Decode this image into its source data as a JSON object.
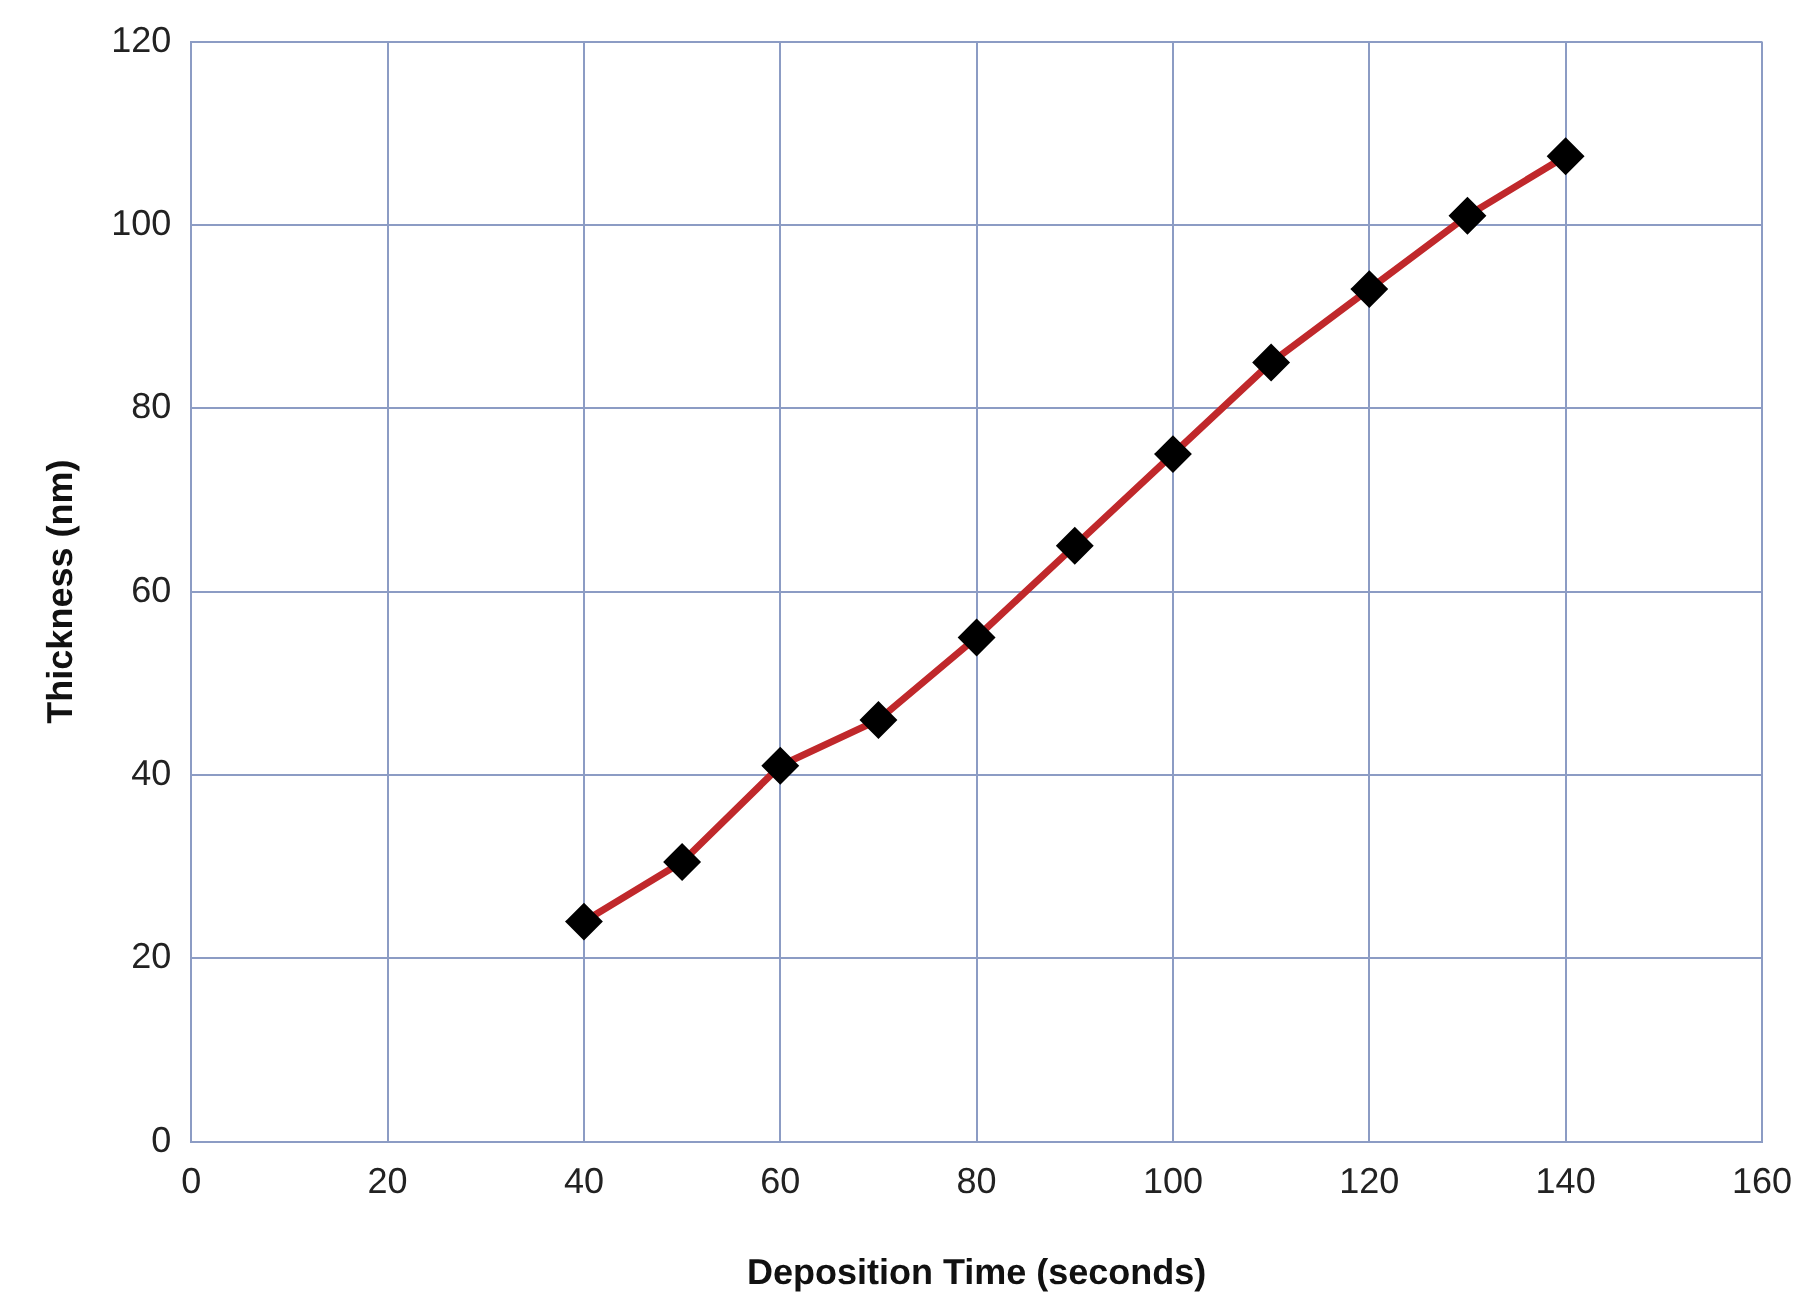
{
  "chart_data": {
    "type": "line",
    "xlabel": "Deposition Time (seconds)",
    "ylabel": "Thickness (nm)",
    "x": [
      40,
      50,
      60,
      70,
      80,
      90,
      100,
      110,
      120,
      130,
      140
    ],
    "series": [
      {
        "color": "#c0282b",
        "values": [
          24,
          30.5,
          41,
          46,
          55,
          65,
          75,
          85,
          93,
          101,
          107.5
        ]
      }
    ],
    "xlim": [
      0,
      160
    ],
    "xticks": [
      0,
      20,
      40,
      60,
      80,
      100,
      120,
      140,
      160
    ],
    "ylim": [
      0,
      120
    ],
    "yticks": [
      0,
      20,
      40,
      60,
      80,
      100,
      120
    ],
    "grid": true,
    "legend": false,
    "marker": "diamond",
    "line_style": "solid"
  }
}
